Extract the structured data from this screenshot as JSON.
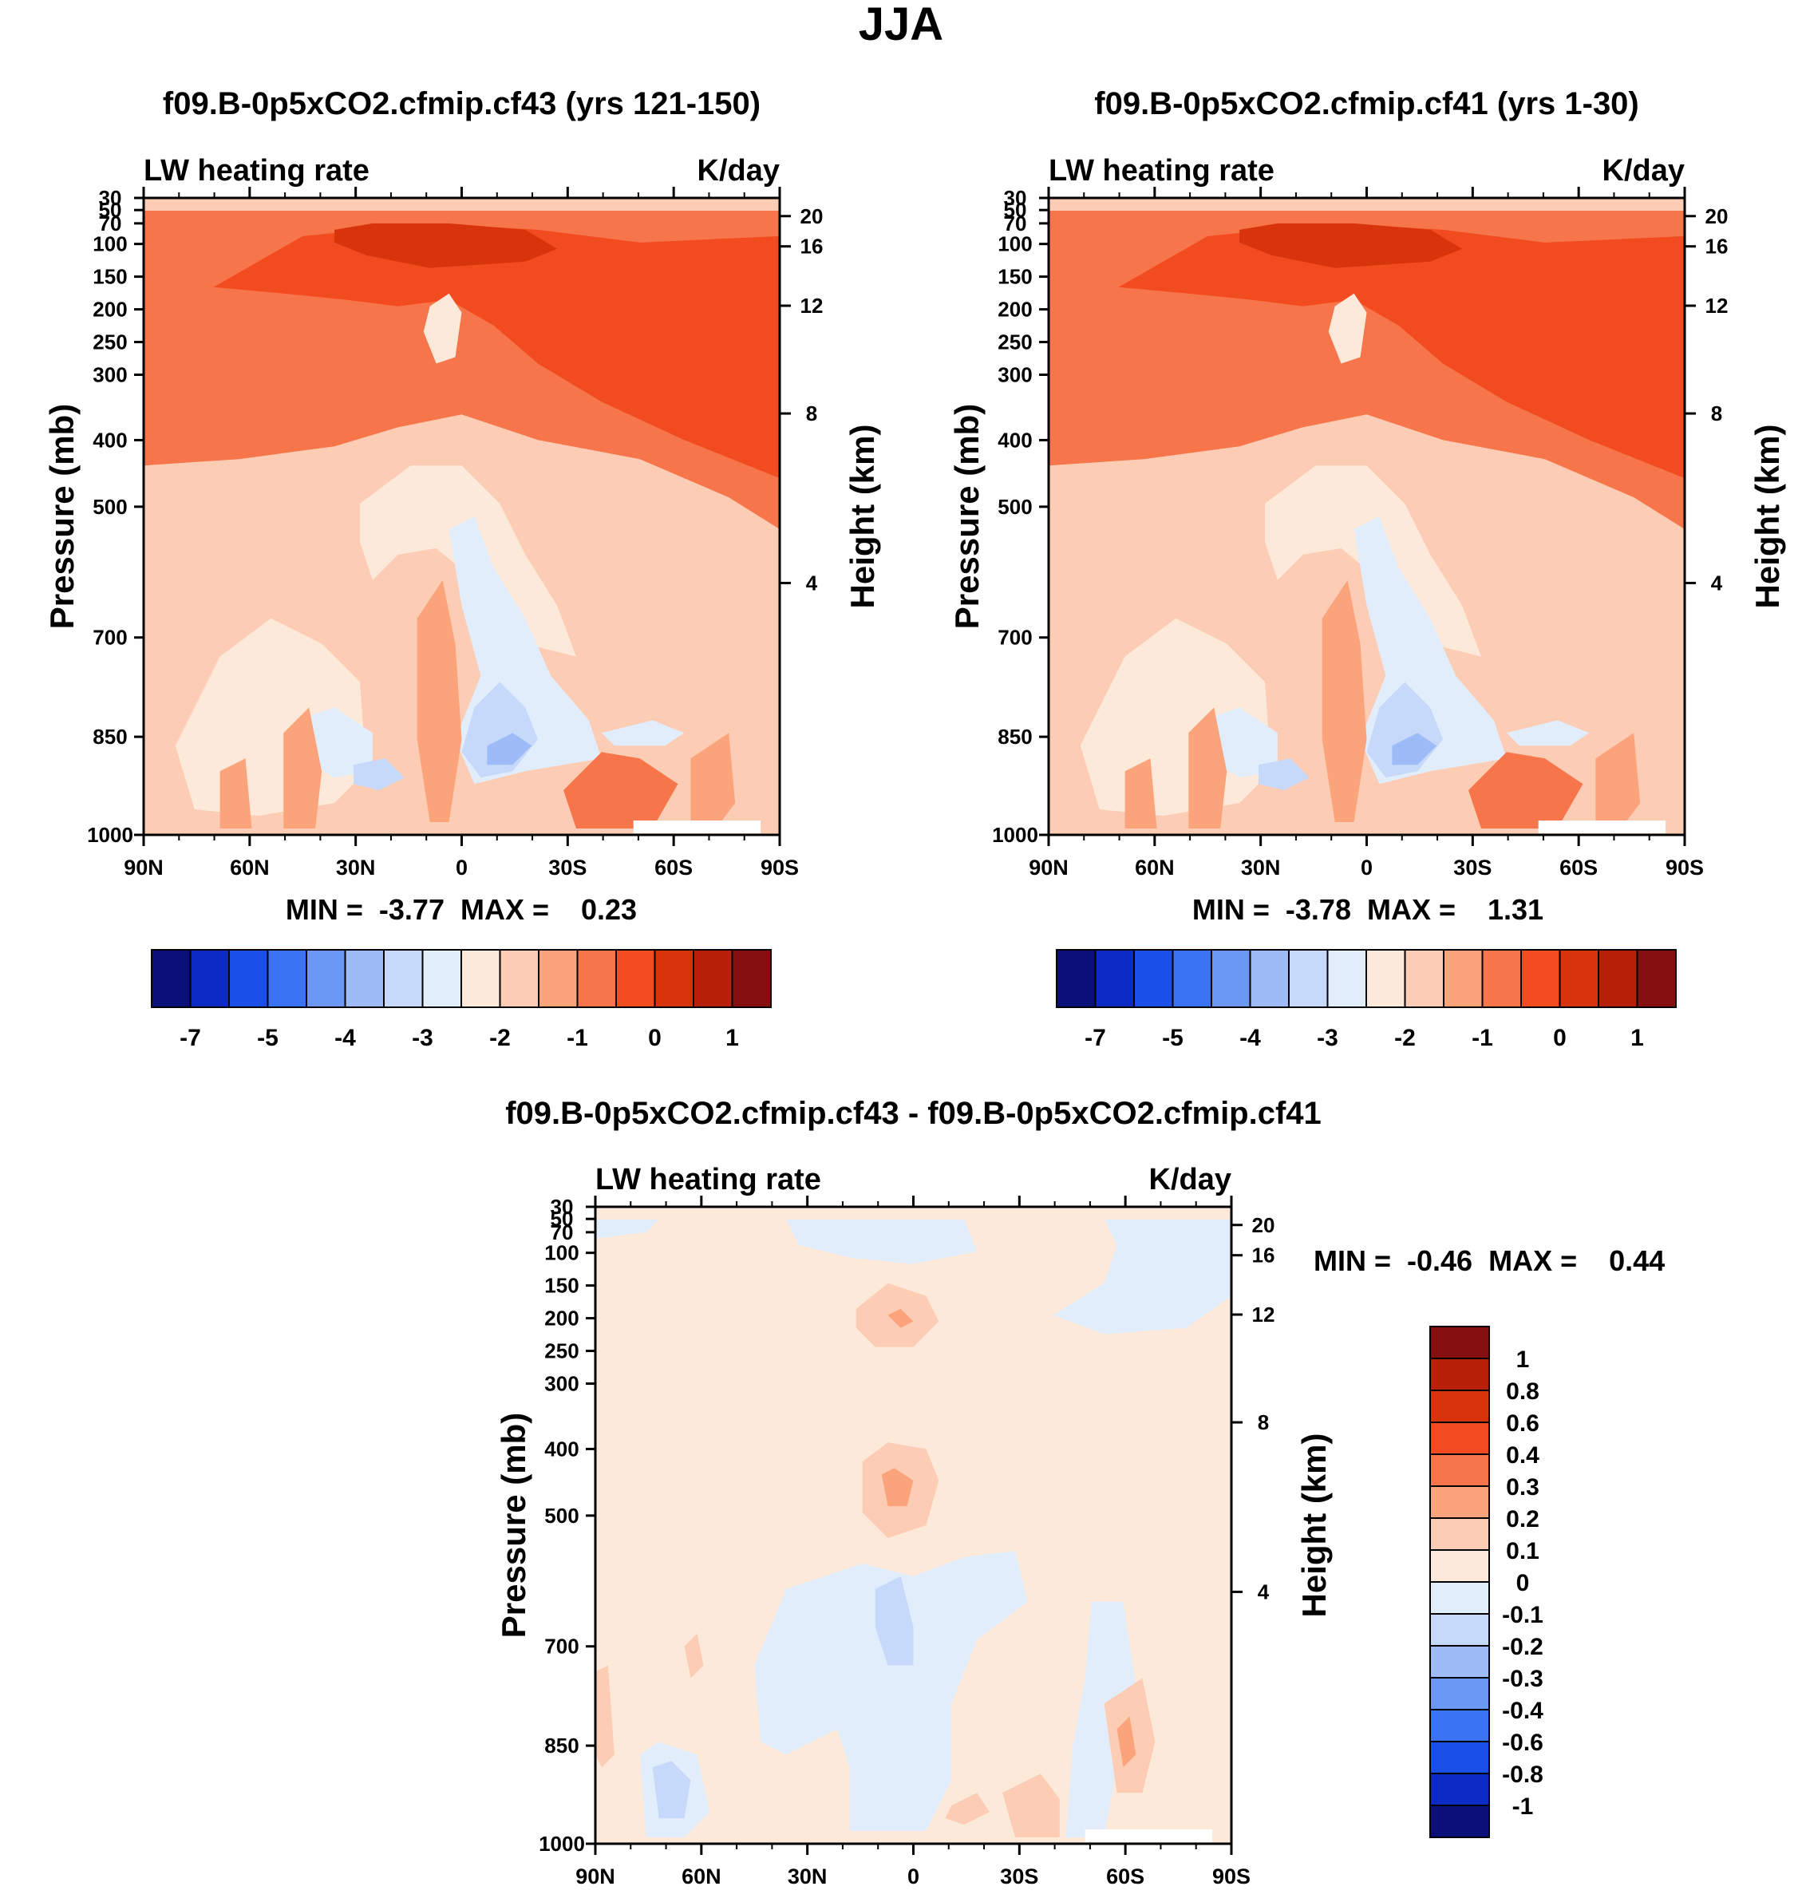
{
  "figure": {
    "title": "JJA"
  },
  "colors": {
    "full": [
      "#0a0f7a",
      "#0b2bc4",
      "#1a4fe8",
      "#3a74f2",
      "#6a98f4",
      "#9dbcf7",
      "#c6d9fa",
      "#e2edfb",
      "#fde9d9",
      "#fccdb4",
      "#fba47c",
      "#f7754a",
      "#f14b1f",
      "#d8340b",
      "#b8200a",
      "#861010"
    ],
    "diff": [
      "#0a0f7a",
      "#0b2bc4",
      "#1a4fe8",
      "#3a74f2",
      "#6a98f4",
      "#9dbcf7",
      "#c6d9fa",
      "#e2edfb",
      "#fde9d9",
      "#fccdb4",
      "#fba47c",
      "#f7754a",
      "#f14b1f",
      "#d8340b",
      "#b8200a",
      "#861010"
    ]
  },
  "chart_data": [
    {
      "type": "contour",
      "title": "f09.B-0p5xCO2.cfmip.cf43 (yrs 121-150)",
      "left_subtitle": "LW heating rate",
      "right_subtitle": "K/day",
      "ylabel": "Pressure (mb)",
      "ylabel_right": "Height (km)",
      "x_ticks": [
        "90N",
        "60N",
        "30N",
        "0",
        "30S",
        "60S",
        "90S"
      ],
      "y_ticks": [
        "30",
        "50",
        "70",
        "100",
        "150",
        "200",
        "250",
        "300",
        "400",
        "500",
        "700",
        "850",
        "1000"
      ],
      "y_ticks_right": [
        "20",
        "16",
        "12",
        "8",
        "4"
      ],
      "stats": "MIN =  -3.77  MAX =    0.23",
      "min": -3.77,
      "max": 0.23,
      "colorbar_labels": [
        "-7",
        "-5",
        "-4",
        "-3",
        "-2",
        "-1",
        "0",
        "1"
      ]
    },
    {
      "type": "contour",
      "title": "f09.B-0p5xCO2.cfmip.cf41 (yrs 1-30)",
      "left_subtitle": "LW heating rate",
      "right_subtitle": "K/day",
      "ylabel": "Pressure (mb)",
      "ylabel_right": "Height (km)",
      "x_ticks": [
        "90N",
        "60N",
        "30N",
        "0",
        "30S",
        "60S",
        "90S"
      ],
      "y_ticks": [
        "30",
        "50",
        "70",
        "100",
        "150",
        "200",
        "250",
        "300",
        "400",
        "500",
        "700",
        "850",
        "1000"
      ],
      "y_ticks_right": [
        "20",
        "16",
        "12",
        "8",
        "4"
      ],
      "stats": "MIN =  -3.78  MAX =    1.31",
      "min": -3.78,
      "max": 1.31,
      "colorbar_labels": [
        "-7",
        "-5",
        "-4",
        "-3",
        "-2",
        "-1",
        "0",
        "1"
      ]
    },
    {
      "type": "contour",
      "title": "f09.B-0p5xCO2.cfmip.cf43 - f09.B-0p5xCO2.cfmip.cf41",
      "left_subtitle": "LW heating rate",
      "right_subtitle": "K/day",
      "ylabel": "Pressure (mb)",
      "ylabel_right": "Height (km)",
      "x_ticks": [
        "90N",
        "60N",
        "30N",
        "0",
        "30S",
        "60S",
        "90S"
      ],
      "y_ticks": [
        "30",
        "50",
        "70",
        "100",
        "150",
        "200",
        "250",
        "300",
        "400",
        "500",
        "700",
        "850",
        "1000"
      ],
      "y_ticks_right": [
        "20",
        "16",
        "12",
        "8",
        "4"
      ],
      "stats": "MIN =  -0.46  MAX =    0.44",
      "min": -0.46,
      "max": 0.44,
      "colorbar_labels": [
        "1",
        "0.8",
        "0.6",
        "0.4",
        "0.3",
        "0.2",
        "0.1",
        "0",
        "-0.1",
        "-0.2",
        "-0.3",
        "-0.4",
        "-0.6",
        "-0.8",
        "-1"
      ]
    }
  ]
}
